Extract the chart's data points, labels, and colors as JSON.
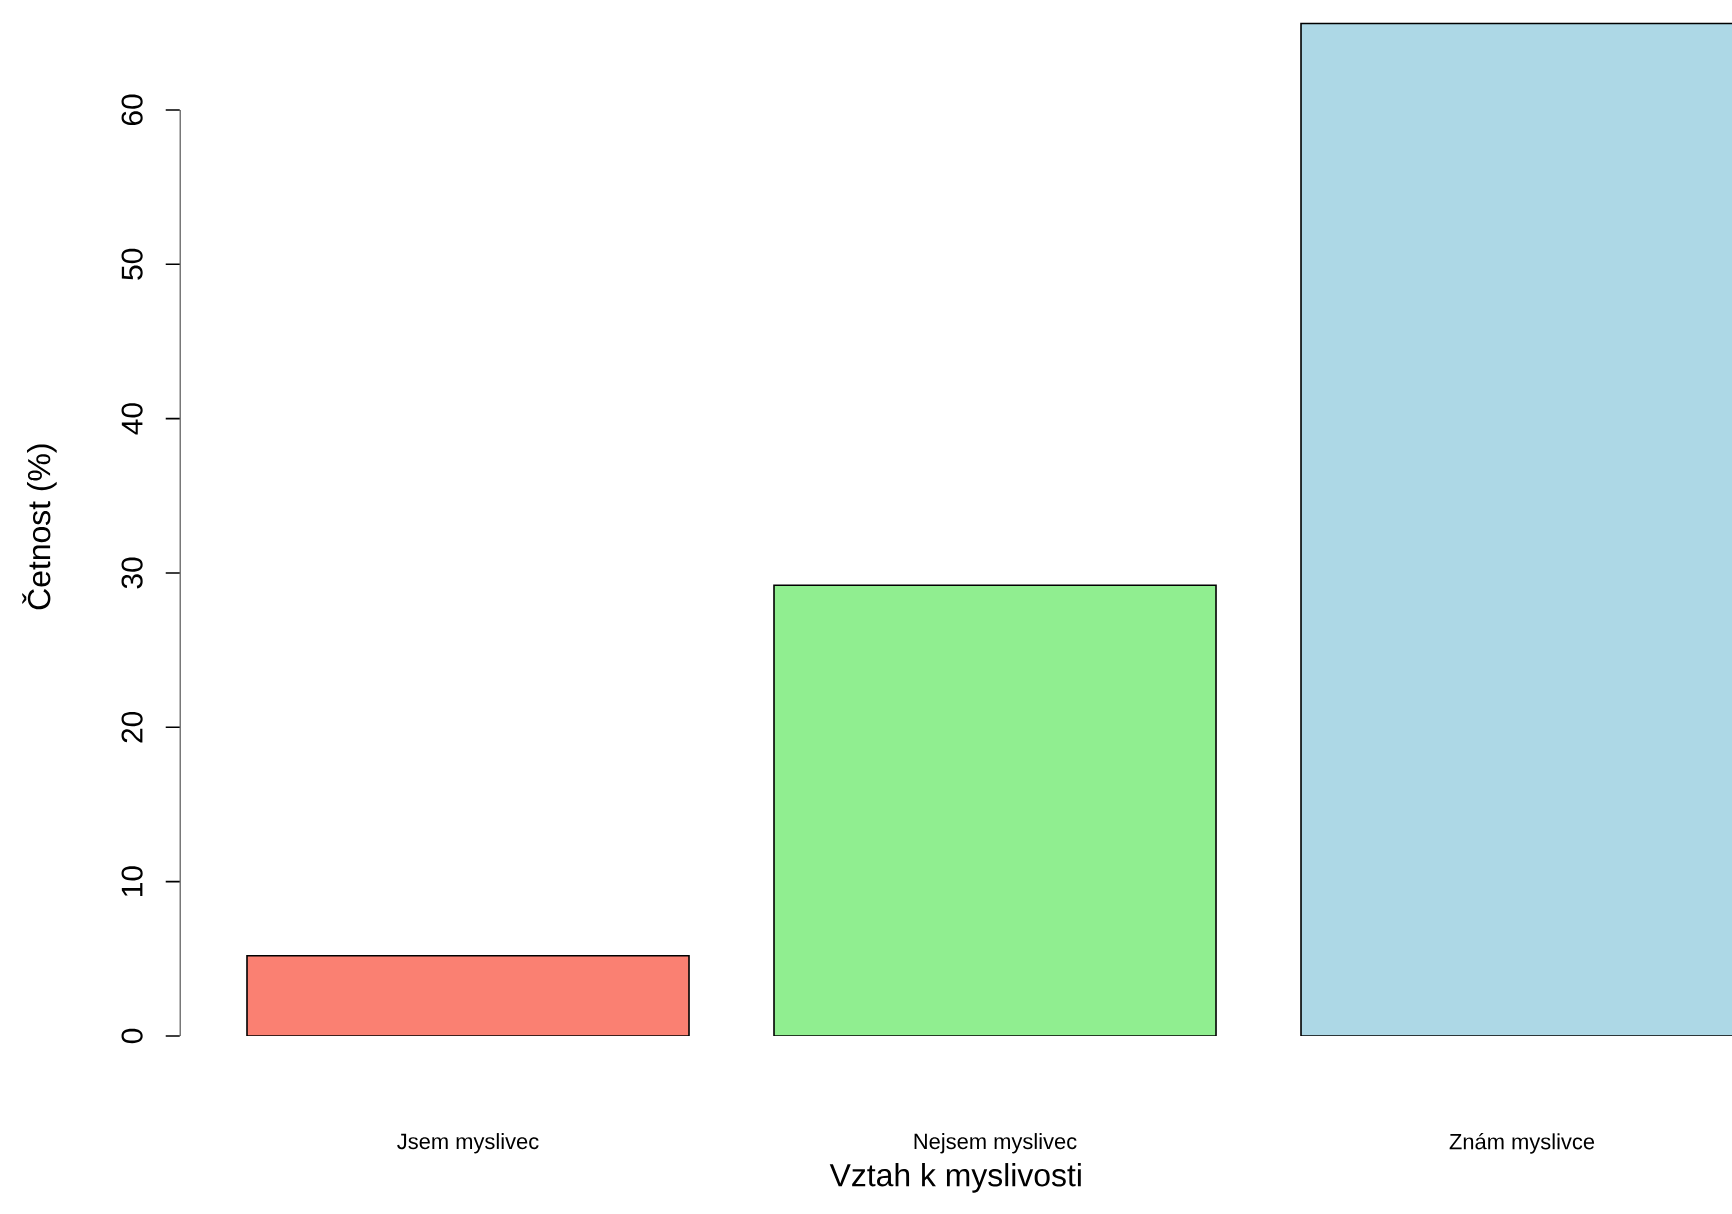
{
  "chart_data": {
    "type": "bar",
    "xlabel": "Vztah k myslivosti",
    "ylabel": "Četnost (%)",
    "categories": [
      "Jsem myslivec",
      "Nejsem myslivec",
      "Znám myslivce"
    ],
    "values": [
      5.2,
      29.2,
      65.6
    ],
    "colors": [
      "#fa8072",
      "#90ee90",
      "#add8e6"
    ],
    "ylim": [
      0,
      66
    ],
    "yticks": [
      0,
      10,
      20,
      30,
      40,
      50,
      60
    ],
    "grid": false
  }
}
